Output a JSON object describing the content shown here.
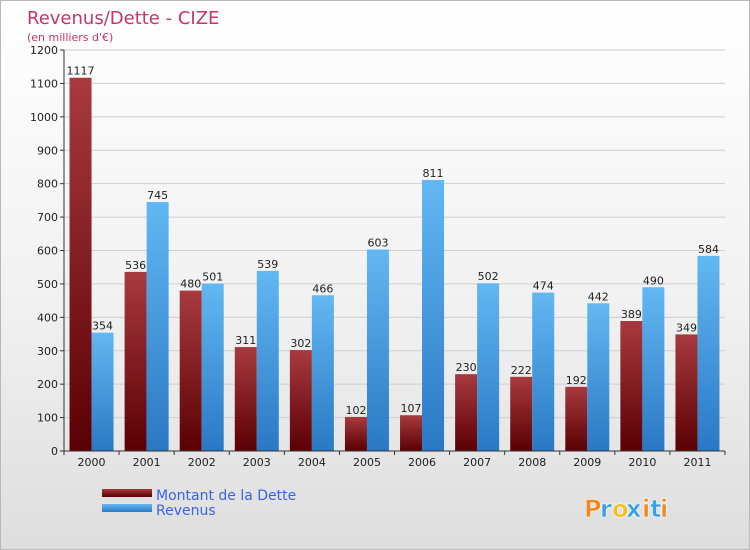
{
  "chart_data": {
    "type": "bar",
    "title": "Revenus/Dette - CIZE",
    "subtitle": "(en milliers d'€)",
    "categories": [
      "2000",
      "2001",
      "2002",
      "2003",
      "2004",
      "2005",
      "2006",
      "2007",
      "2008",
      "2009",
      "2010",
      "2011"
    ],
    "series": [
      {
        "name": "Montant de la Dette",
        "color": "#7a1418",
        "values": [
          1117,
          536,
          480,
          311,
          302,
          102,
          107,
          230,
          222,
          192,
          389,
          349
        ]
      },
      {
        "name": "Revenus",
        "color": "#4a9fe0",
        "values": [
          354,
          745,
          501,
          539,
          466,
          603,
          811,
          502,
          474,
          442,
          490,
          584
        ]
      }
    ],
    "ylim": [
      0,
      1200
    ],
    "yticks": [
      0,
      100,
      200,
      300,
      400,
      500,
      600,
      700,
      800,
      900,
      1000,
      1100,
      1200
    ],
    "grid": true,
    "legend": "bottom-left",
    "xlabel": "",
    "ylabel": ""
  },
  "brand": {
    "logo_text": "Proxiti",
    "colors": [
      "#f08a24",
      "#3aa0e0",
      "#f0c020",
      "#3aa0e0",
      "#f08a24",
      "#3aa0e0",
      "#f08a24"
    ]
  }
}
